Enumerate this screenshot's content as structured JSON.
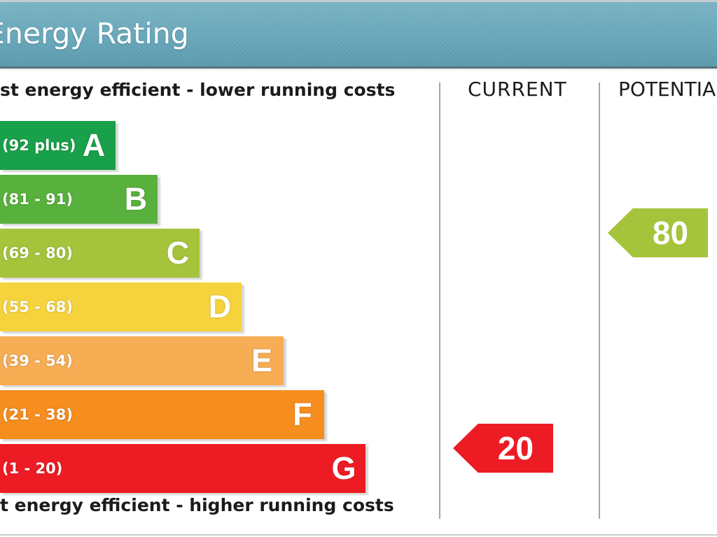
{
  "chart_data": {
    "type": "bar",
    "title": "Energy Rating",
    "top_note": "st energy efficient - lower running costs",
    "bottom_note": "t energy efficient - higher running costs",
    "columns": {
      "current": "CURRENT",
      "potential": "POTENTIA"
    },
    "bands": [
      {
        "letter": "A",
        "range": "(92 plus)",
        "min": 92,
        "color": "#19a04b"
      },
      {
        "letter": "B",
        "range": "(81 - 91)",
        "min": 81,
        "color": "#58b13d"
      },
      {
        "letter": "C",
        "range": "(69 - 80)",
        "min": 69,
        "color": "#a5c43b"
      },
      {
        "letter": "D",
        "range": "(55 - 68)",
        "min": 55,
        "color": "#f6d33c"
      },
      {
        "letter": "E",
        "range": "(39 - 54)",
        "min": 39,
        "color": "#f6ad54"
      },
      {
        "letter": "F",
        "range": "(21 - 38)",
        "min": 21,
        "color": "#f68d1f"
      },
      {
        "letter": "G",
        "range": "(1 - 20)",
        "min": 1,
        "color": "#ed1c24"
      }
    ],
    "current": {
      "value": 20
    },
    "potential": {
      "value": 80
    }
  }
}
